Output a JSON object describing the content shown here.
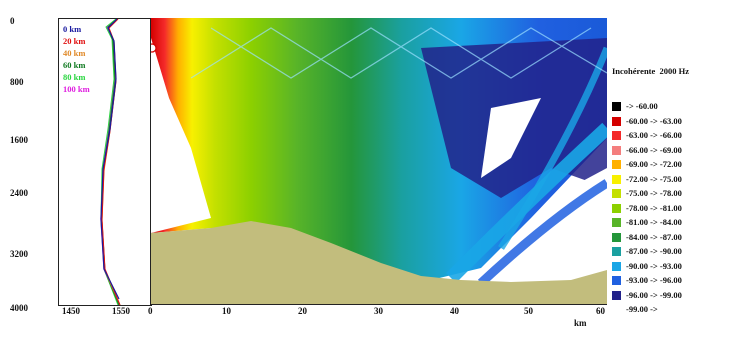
{
  "y_axis": {
    "ticks": [
      "0",
      "800",
      "1600",
      "2400",
      "3200",
      "4000"
    ]
  },
  "profile_panel": {
    "x_ticks": [
      "1450",
      "1550"
    ],
    "range_legend": [
      {
        "label": "0 km",
        "color": "#1a1aa0"
      },
      {
        "label": "20 km",
        "color": "#e01010"
      },
      {
        "label": "40 km",
        "color": "#e08a2a"
      },
      {
        "label": "60 km",
        "color": "#117a22"
      },
      {
        "label": "80 km",
        "color": "#2ad640"
      },
      {
        "label": "100 km",
        "color": "#e020e0"
      }
    ]
  },
  "section_panel": {
    "x_ticks": [
      "0",
      "10",
      "20",
      "30",
      "40",
      "50",
      "60"
    ],
    "x_unit": "km"
  },
  "legend": {
    "title": "Incohérente",
    "frequency": "2000 Hz",
    "entries": [
      {
        "label": "-> -60.00",
        "color": "#000000"
      },
      {
        "label": "-60.00 -> -63.00",
        "color": "#d40000"
      },
      {
        "label": "-63.00 -> -66.00",
        "color": "#f42a2a"
      },
      {
        "label": "-66.00 -> -69.00",
        "color": "#f47e7e"
      },
      {
        "label": "-69.00 -> -72.00",
        "color": "#ffb000"
      },
      {
        "label": "-72.00 -> -75.00",
        "color": "#f8f000"
      },
      {
        "label": "-75.00 -> -78.00",
        "color": "#c4e000"
      },
      {
        "label": "-78.00 -> -81.00",
        "color": "#8cd000"
      },
      {
        "label": "-81.00 -> -84.00",
        "color": "#58b428"
      },
      {
        "label": "-84.00 -> -87.00",
        "color": "#24963a"
      },
      {
        "label": "-87.00 -> -90.00",
        "color": "#1aa0a0"
      },
      {
        "label": "-90.00 -> -93.00",
        "color": "#1aa6e6"
      },
      {
        "label": "-93.00 -> -96.00",
        "color": "#2060e0"
      },
      {
        "label": "-96.00 -> -99.00",
        "color": "#22228a"
      },
      {
        "label": "-99.00 ->",
        "color": "#ffffff"
      }
    ]
  }
}
